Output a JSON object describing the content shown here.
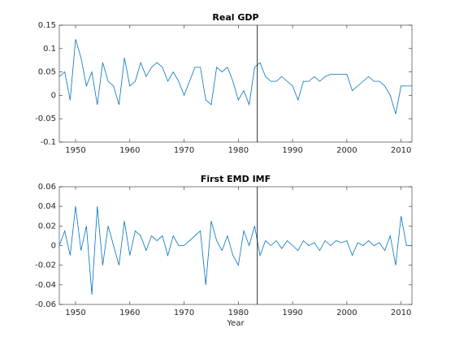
{
  "chart_data": [
    {
      "type": "line",
      "title": "Real GDP",
      "x": [
        1947,
        1948,
        1949,
        1950,
        1951,
        1952,
        1953,
        1954,
        1955,
        1956,
        1957,
        1958,
        1959,
        1960,
        1961,
        1962,
        1963,
        1964,
        1965,
        1966,
        1967,
        1968,
        1969,
        1970,
        1971,
        1972,
        1973,
        1974,
        1975,
        1976,
        1977,
        1978,
        1979,
        1980,
        1981,
        1982,
        1983,
        1984,
        1985,
        1986,
        1987,
        1988,
        1989,
        1990,
        1991,
        1992,
        1993,
        1994,
        1995,
        1996,
        1997,
        1998,
        1999,
        2000,
        2001,
        2002,
        2003,
        2004,
        2005,
        2006,
        2007,
        2008,
        2009,
        2010,
        2011,
        2012
      ],
      "series": [
        {
          "name": "Real GDP",
          "color": "#0072bd",
          "values": [
            0.04,
            0.05,
            -0.01,
            0.12,
            0.08,
            0.02,
            0.05,
            -0.02,
            0.07,
            0.03,
            0.02,
            -0.02,
            0.08,
            0.02,
            0.03,
            0.07,
            0.04,
            0.06,
            0.07,
            0.06,
            0.03,
            0.05,
            0.03,
            0.0,
            0.03,
            0.06,
            0.06,
            -0.01,
            -0.02,
            0.06,
            0.05,
            0.06,
            0.03,
            -0.01,
            0.01,
            -0.02,
            0.06,
            0.07,
            0.04,
            0.03,
            0.03,
            0.04,
            0.03,
            0.02,
            -0.01,
            0.03,
            0.03,
            0.04,
            0.03,
            0.04,
            0.045,
            0.045,
            0.045,
            0.045,
            0.01,
            0.02,
            0.03,
            0.04,
            0.03,
            0.03,
            0.02,
            0.0,
            -0.04,
            0.02,
            0.02,
            0.02
          ]
        }
      ],
      "vline": 1983.5,
      "vline_color": "#000000",
      "xlim": [
        1947,
        2012
      ],
      "xticks": [
        1950,
        1960,
        1970,
        1980,
        1990,
        2000,
        2010
      ],
      "ylim": [
        -0.1,
        0.15
      ],
      "yticks": [
        -0.1,
        -0.05,
        0,
        0.05,
        0.1,
        0.15
      ]
    },
    {
      "type": "line",
      "title": "First EMD IMF",
      "x_label": "Year",
      "x": [
        1947,
        1948,
        1949,
        1950,
        1951,
        1952,
        1953,
        1954,
        1955,
        1956,
        1957,
        1958,
        1959,
        1960,
        1961,
        1962,
        1963,
        1964,
        1965,
        1966,
        1967,
        1968,
        1969,
        1970,
        1971,
        1972,
        1973,
        1974,
        1975,
        1976,
        1977,
        1978,
        1979,
        1980,
        1981,
        1982,
        1983,
        1984,
        1985,
        1986,
        1987,
        1988,
        1989,
        1990,
        1991,
        1992,
        1993,
        1994,
        1995,
        1996,
        1997,
        1998,
        1999,
        2000,
        2001,
        2002,
        2003,
        2004,
        2005,
        2006,
        2007,
        2008,
        2009,
        2010,
        2011,
        2012
      ],
      "series": [
        {
          "name": "First EMD IMF",
          "color": "#0072bd",
          "values": [
            0.0,
            0.015,
            -0.01,
            0.04,
            -0.005,
            0.02,
            -0.05,
            0.04,
            -0.02,
            0.02,
            0.0,
            -0.02,
            0.025,
            -0.01,
            0.015,
            0.01,
            -0.005,
            0.01,
            0.005,
            0.01,
            -0.01,
            0.01,
            0.0,
            0.0,
            0.005,
            0.01,
            0.015,
            -0.04,
            0.025,
            0.005,
            -0.005,
            0.01,
            -0.01,
            -0.02,
            0.015,
            0.0,
            0.02,
            -0.01,
            0.005,
            0.0,
            0.005,
            -0.003,
            0.005,
            0.0,
            -0.005,
            0.005,
            0.0,
            0.003,
            -0.005,
            0.005,
            0.0,
            0.005,
            0.003,
            0.005,
            -0.01,
            0.003,
            0.0,
            0.005,
            0.0,
            0.003,
            -0.005,
            0.01,
            -0.02,
            0.03,
            0.0,
            0.0
          ]
        }
      ],
      "vline": 1983.5,
      "vline_color": "#000000",
      "xlim": [
        1947,
        2012
      ],
      "xticks": [
        1950,
        1960,
        1970,
        1980,
        1990,
        2000,
        2010
      ],
      "ylim": [
        -0.06,
        0.06
      ],
      "yticks": [
        -0.06,
        -0.04,
        -0.02,
        0,
        0.02,
        0.04,
        0.06
      ]
    }
  ]
}
